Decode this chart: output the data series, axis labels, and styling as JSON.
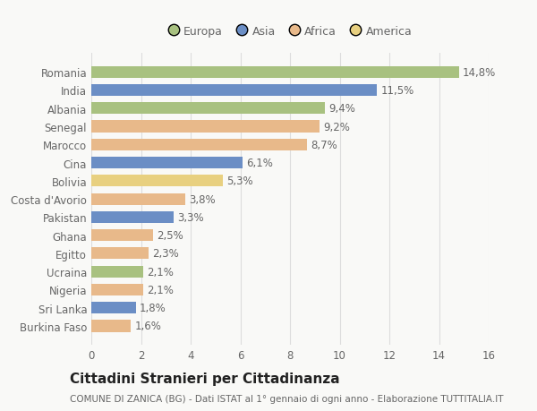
{
  "categories": [
    "Burkina Faso",
    "Sri Lanka",
    "Nigeria",
    "Ucraina",
    "Egitto",
    "Ghana",
    "Pakistan",
    "Costa d'Avorio",
    "Bolivia",
    "Cina",
    "Marocco",
    "Senegal",
    "Albania",
    "India",
    "Romania"
  ],
  "values": [
    1.6,
    1.8,
    2.1,
    2.1,
    2.3,
    2.5,
    3.3,
    3.8,
    5.3,
    6.1,
    8.7,
    9.2,
    9.4,
    11.5,
    14.8
  ],
  "colors": [
    "#e8b98a",
    "#6b8ec5",
    "#e8b98a",
    "#a8c180",
    "#e8b98a",
    "#e8b98a",
    "#6b8ec5",
    "#e8b98a",
    "#e8d080",
    "#6b8ec5",
    "#e8b98a",
    "#e8b98a",
    "#a8c180",
    "#6b8ec5",
    "#a8c180"
  ],
  "labels": [
    "1,6%",
    "1,8%",
    "2,1%",
    "2,1%",
    "2,3%",
    "2,5%",
    "3,3%",
    "3,8%",
    "5,3%",
    "6,1%",
    "8,7%",
    "9,2%",
    "9,4%",
    "11,5%",
    "14,8%"
  ],
  "legend": [
    {
      "label": "Europa",
      "color": "#a8c180"
    },
    {
      "label": "Asia",
      "color": "#6b8ec5"
    },
    {
      "label": "Africa",
      "color": "#e8b98a"
    },
    {
      "label": "America",
      "color": "#e8d080"
    }
  ],
  "xlim": [
    0,
    16
  ],
  "xticks": [
    0,
    2,
    4,
    6,
    8,
    10,
    12,
    14,
    16
  ],
  "title": "Cittadini Stranieri per Cittadinanza",
  "subtitle": "COMUNE DI ZANICA (BG) - Dati ISTAT al 1° gennaio di ogni anno - Elaborazione TUTTITALIA.IT",
  "bg_color": "#f9f9f7",
  "plot_bg_color": "#f9f9f7",
  "grid_color": "#e8e8e8",
  "bar_height": 0.65,
  "label_fontsize": 8.5,
  "tick_fontsize": 8.5,
  "title_fontsize": 11,
  "subtitle_fontsize": 7.5
}
